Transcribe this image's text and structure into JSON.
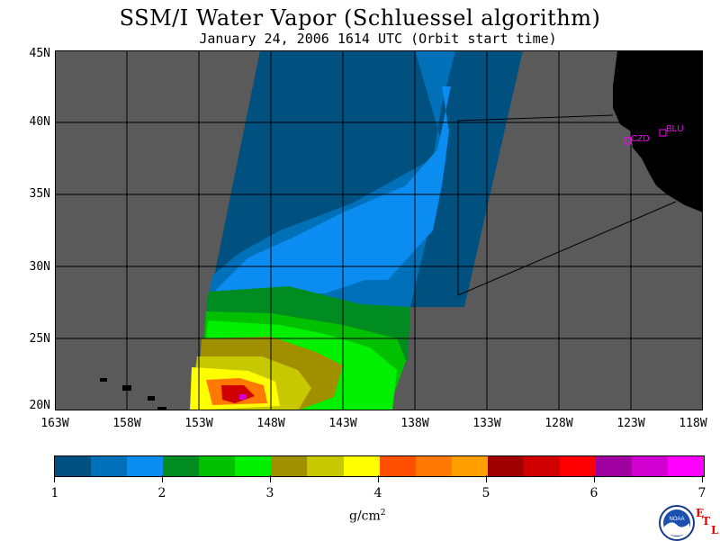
{
  "header": {
    "title": "SSM/I Water Vapor (Schluessel algorithm)",
    "subtitle": "January 24, 2006  1614 UTC  (Orbit start time)"
  },
  "chart_data": {
    "type": "heatmap",
    "title": "SSM/I Water Vapor (Schluessel algorithm)",
    "subtitle": "January 24, 2006  1614 UTC  (Orbit start time)",
    "xlim": [
      -163,
      -118
    ],
    "ylim": [
      20,
      45
    ],
    "x_ticks": [
      "163W",
      "158W",
      "153W",
      "148W",
      "143W",
      "138W",
      "133W",
      "128W",
      "123W",
      "118W"
    ],
    "y_ticks": [
      "45N",
      "40N",
      "35N",
      "30N",
      "25N",
      "20N"
    ],
    "grid": true,
    "station_labels": [
      "CZD",
      "BLU"
    ],
    "colorbar": {
      "label": "g/cm²",
      "min": 1,
      "max": 7,
      "ticks": [
        "1",
        "2",
        "3",
        "4",
        "5",
        "6",
        "7"
      ],
      "colors": [
        "#005080",
        "#0070b8",
        "#0a8cf0",
        "#008c20",
        "#00c000",
        "#00f000",
        "#a09000",
        "#c8c800",
        "#ffff00",
        "#ff5000",
        "#ff7800",
        "#ffa000",
        "#a00000",
        "#d00000",
        "#ff0000",
        "#a000a0",
        "#d000d0",
        "#ff00ff"
      ]
    },
    "colors": {
      "background": "#5a5a5a",
      "land": "#000000",
      "station": "#ff00ff",
      "grid": "#000000"
    }
  },
  "logo": {
    "text": "NOAA",
    "etl": [
      "E",
      "T",
      "L"
    ]
  },
  "units": {
    "base": "g/cm",
    "exp": "2"
  }
}
